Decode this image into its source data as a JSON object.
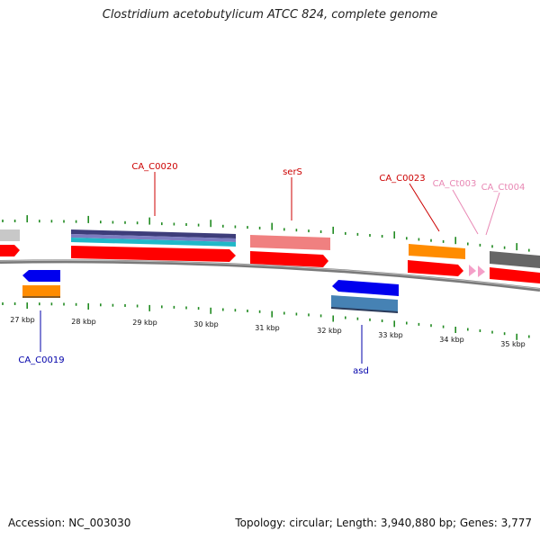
{
  "title": "Clostridium acetobutylicum ATCC 824, complete genome",
  "footer": {
    "accession": "Accession: NC_003030",
    "summary": "Topology: circular; Length: 3,940,880 bp; Genes: 3,777"
  },
  "colors": {
    "backbone": "#7a7a7a",
    "ticks": "#228b22",
    "forward_cds": "#ff0000",
    "reverse_cds": "#0000ee",
    "orange_feature": "#ff8c00",
    "grey_feature": "#777777",
    "pink_label": "#e888b4",
    "red_label": "#cc0000",
    "blue_label": "#0000aa"
  },
  "scale_labels": [
    "27 kbp",
    "28 kbp",
    "29 kbp",
    "30 kbp",
    "31 kbp",
    "32 kbp",
    "33 kbp",
    "34 kbp",
    "35 kbp"
  ],
  "gene_labels": [
    {
      "text": "CA_C0020",
      "color": "red"
    },
    {
      "text": "serS",
      "color": "red"
    },
    {
      "text": "CA_C0023",
      "color": "red"
    },
    {
      "text": "CA_Ct003",
      "color": "pink"
    },
    {
      "text": "CA_Ct004",
      "color": "pink"
    },
    {
      "text": "CA_C0019",
      "color": "blue"
    },
    {
      "text": "asd",
      "color": "blue"
    }
  ]
}
